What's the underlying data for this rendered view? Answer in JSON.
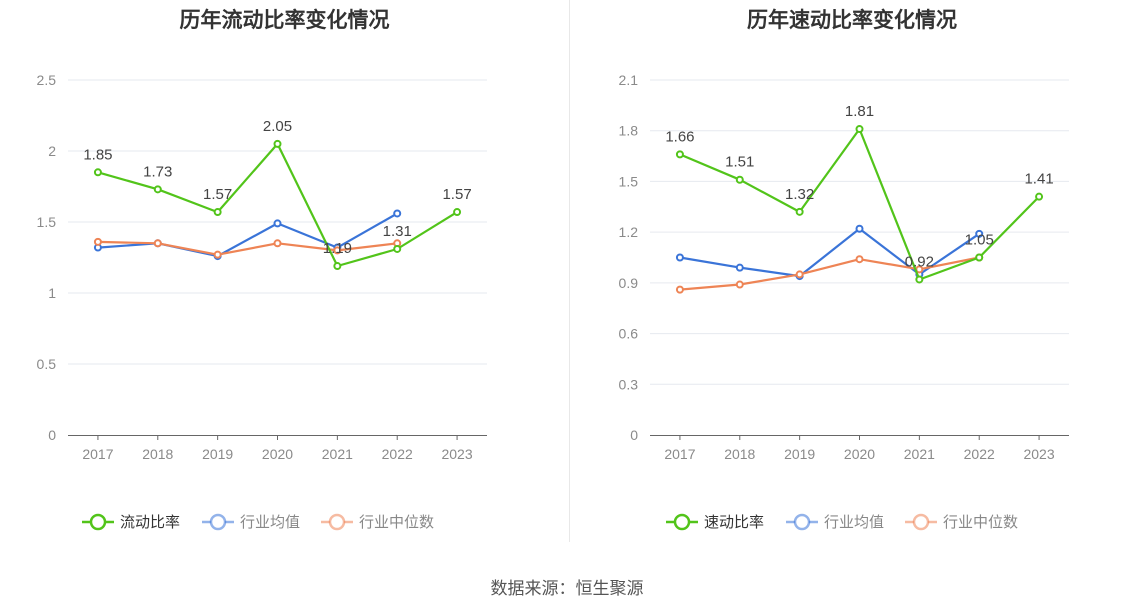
{
  "source": "数据来源：恒生聚源",
  "colors": {
    "company": "#52c41a",
    "avg": "#3a74d8",
    "median": "#ee8455"
  },
  "chart_data": [
    {
      "type": "line",
      "title": "历年流动比率变化情况",
      "categories": [
        "2017",
        "2018",
        "2019",
        "2020",
        "2021",
        "2022",
        "2023"
      ],
      "ylim": [
        0,
        2.5
      ],
      "yticks": [
        "0",
        "0.5",
        "1",
        "1.5",
        "2",
        "2.5"
      ],
      "grid": true,
      "legend_position": "bottom",
      "series": [
        {
          "name": "流动比率",
          "key": "company",
          "values": [
            1.85,
            1.73,
            1.57,
            2.05,
            1.19,
            1.31,
            1.57
          ],
          "labels": [
            "1.85",
            "1.73",
            "1.57",
            "2.05",
            "1.19",
            "1.31",
            "1.57"
          ]
        },
        {
          "name": "行业均值",
          "key": "avg",
          "values": [
            1.32,
            1.35,
            1.26,
            1.49,
            1.32,
            1.56,
            null
          ]
        },
        {
          "name": "行业中位数",
          "key": "median",
          "values": [
            1.36,
            1.35,
            1.27,
            1.35,
            1.3,
            1.35,
            null
          ]
        }
      ]
    },
    {
      "type": "line",
      "title": "历年速动比率变化情况",
      "categories": [
        "2017",
        "2018",
        "2019",
        "2020",
        "2021",
        "2022",
        "2023"
      ],
      "ylim": [
        0,
        2.1
      ],
      "yticks": [
        "0",
        "0.3",
        "0.6",
        "0.9",
        "1.2",
        "1.5",
        "1.8",
        "2.1"
      ],
      "grid": true,
      "legend_position": "bottom",
      "series": [
        {
          "name": "速动比率",
          "key": "company",
          "values": [
            1.66,
            1.51,
            1.32,
            1.81,
            0.92,
            1.05,
            1.41
          ],
          "labels": [
            "1.66",
            "1.51",
            "1.32",
            "1.81",
            "0.92",
            "1.05",
            "1.41"
          ]
        },
        {
          "name": "行业均值",
          "key": "avg",
          "values": [
            1.05,
            0.99,
            0.94,
            1.22,
            0.95,
            1.19,
            null
          ]
        },
        {
          "name": "行业中位数",
          "key": "median",
          "values": [
            0.86,
            0.89,
            0.95,
            1.04,
            0.98,
            1.05,
            null
          ]
        }
      ]
    }
  ]
}
